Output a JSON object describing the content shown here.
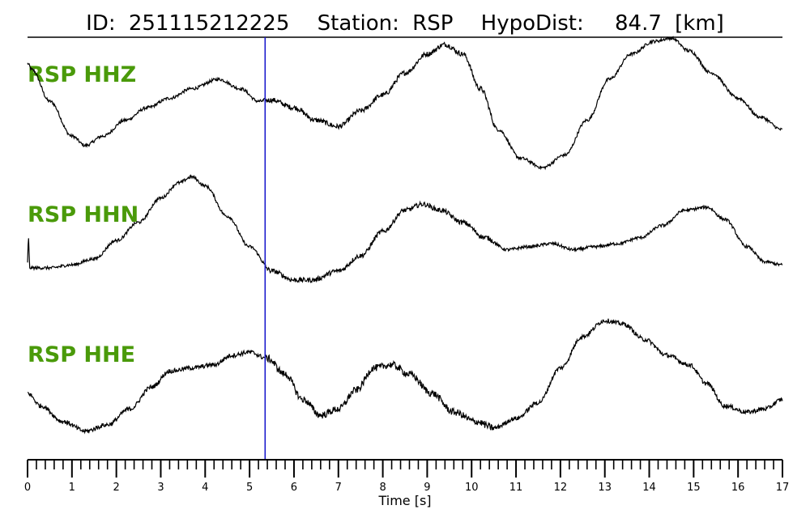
{
  "title": {
    "id_label": "ID:",
    "id_value": "251115212225",
    "station_label": "Station:",
    "station_value": "RSP",
    "dist_label": "HypoDist:",
    "dist_value": "84.7",
    "dist_unit": "[km]"
  },
  "colors": {
    "trace": "#000000",
    "channel_label": "#4a9a0a",
    "pick_marker": "#1a1acc"
  },
  "chart_data": {
    "type": "line",
    "xlabel": "Time [s]",
    "xlim": [
      0,
      17
    ],
    "x_major_ticks": [
      0,
      1,
      2,
      3,
      4,
      5,
      6,
      7,
      8,
      9,
      10,
      11,
      12,
      13,
      14,
      15,
      16,
      17
    ],
    "x_minor_step": 0.2,
    "pick_time": 5.35,
    "series": [
      {
        "name": "RSP HHZ",
        "label": "RSP HHZ",
        "noise": 0.05,
        "points": [
          [
            0,
            0.7
          ],
          [
            0.1,
            0.6
          ],
          [
            0.5,
            0.1
          ],
          [
            1.0,
            -0.45
          ],
          [
            1.3,
            -0.6
          ],
          [
            1.7,
            -0.45
          ],
          [
            2.2,
            -0.2
          ],
          [
            2.7,
            0.0
          ],
          [
            3.2,
            0.15
          ],
          [
            3.7,
            0.3
          ],
          [
            4.3,
            0.45
          ],
          [
            4.8,
            0.3
          ],
          [
            5.2,
            0.1
          ],
          [
            5.5,
            0.12
          ],
          [
            6.0,
            0.0
          ],
          [
            6.5,
            -0.2
          ],
          [
            7.0,
            -0.3
          ],
          [
            7.5,
            -0.05
          ],
          [
            8.0,
            0.2
          ],
          [
            8.5,
            0.55
          ],
          [
            9.0,
            0.85
          ],
          [
            9.4,
            1.0
          ],
          [
            9.8,
            0.85
          ],
          [
            10.2,
            0.3
          ],
          [
            10.6,
            -0.35
          ],
          [
            11.1,
            -0.8
          ],
          [
            11.6,
            -0.95
          ],
          [
            12.1,
            -0.75
          ],
          [
            12.6,
            -0.2
          ],
          [
            13.1,
            0.45
          ],
          [
            13.6,
            0.85
          ],
          [
            14.1,
            1.05
          ],
          [
            14.5,
            1.1
          ],
          [
            14.9,
            0.9
          ],
          [
            15.4,
            0.55
          ],
          [
            16.0,
            0.15
          ],
          [
            16.5,
            -0.15
          ],
          [
            17.0,
            -0.35
          ]
        ]
      },
      {
        "name": "RSP HHN",
        "label": "RSP HHN",
        "noise": 0.05,
        "points": [
          [
            0,
            -0.3
          ],
          [
            0.02,
            0.1
          ],
          [
            0.05,
            -0.4
          ],
          [
            0.5,
            -0.4
          ],
          [
            1.0,
            -0.35
          ],
          [
            1.5,
            -0.25
          ],
          [
            2.0,
            0.05
          ],
          [
            2.5,
            0.35
          ],
          [
            3.0,
            0.75
          ],
          [
            3.4,
            1.0
          ],
          [
            3.7,
            1.1
          ],
          [
            4.0,
            0.95
          ],
          [
            4.5,
            0.45
          ],
          [
            5.0,
            -0.05
          ],
          [
            5.5,
            -0.45
          ],
          [
            6.0,
            -0.6
          ],
          [
            6.4,
            -0.6
          ],
          [
            7.0,
            -0.45
          ],
          [
            7.5,
            -0.2
          ],
          [
            8.0,
            0.2
          ],
          [
            8.5,
            0.55
          ],
          [
            8.9,
            0.65
          ],
          [
            9.3,
            0.55
          ],
          [
            9.8,
            0.35
          ],
          [
            10.3,
            0.1
          ],
          [
            10.8,
            -0.1
          ],
          [
            11.3,
            -0.05
          ],
          [
            11.8,
            0.0
          ],
          [
            12.3,
            -0.1
          ],
          [
            12.8,
            -0.05
          ],
          [
            13.3,
            0.0
          ],
          [
            13.8,
            0.1
          ],
          [
            14.3,
            0.3
          ],
          [
            14.8,
            0.55
          ],
          [
            15.3,
            0.6
          ],
          [
            15.7,
            0.4
          ],
          [
            16.2,
            -0.05
          ],
          [
            16.6,
            -0.3
          ],
          [
            17.0,
            -0.35
          ]
        ]
      },
      {
        "name": "RSP HHE",
        "label": "RSP HHE",
        "noise": 0.07,
        "points": [
          [
            0,
            -0.1
          ],
          [
            0.3,
            -0.3
          ],
          [
            0.8,
            -0.55
          ],
          [
            1.3,
            -0.7
          ],
          [
            1.8,
            -0.6
          ],
          [
            2.3,
            -0.35
          ],
          [
            2.8,
            0.0
          ],
          [
            3.2,
            0.25
          ],
          [
            3.7,
            0.3
          ],
          [
            4.2,
            0.35
          ],
          [
            4.6,
            0.5
          ],
          [
            5.0,
            0.55
          ],
          [
            5.4,
            0.45
          ],
          [
            5.8,
            0.2
          ],
          [
            6.2,
            -0.2
          ],
          [
            6.6,
            -0.45
          ],
          [
            7.0,
            -0.35
          ],
          [
            7.4,
            -0.05
          ],
          [
            7.8,
            0.3
          ],
          [
            8.2,
            0.35
          ],
          [
            8.6,
            0.2
          ],
          [
            9.1,
            -0.1
          ],
          [
            9.6,
            -0.4
          ],
          [
            10.1,
            -0.55
          ],
          [
            10.5,
            -0.65
          ],
          [
            11.0,
            -0.5
          ],
          [
            11.5,
            -0.25
          ],
          [
            12.0,
            0.3
          ],
          [
            12.5,
            0.8
          ],
          [
            13.0,
            1.05
          ],
          [
            13.4,
            1.0
          ],
          [
            13.9,
            0.75
          ],
          [
            14.4,
            0.5
          ],
          [
            14.9,
            0.35
          ],
          [
            15.3,
            0.05
          ],
          [
            15.7,
            -0.3
          ],
          [
            16.2,
            -0.4
          ],
          [
            16.6,
            -0.35
          ],
          [
            17.0,
            -0.2
          ]
        ]
      }
    ]
  }
}
